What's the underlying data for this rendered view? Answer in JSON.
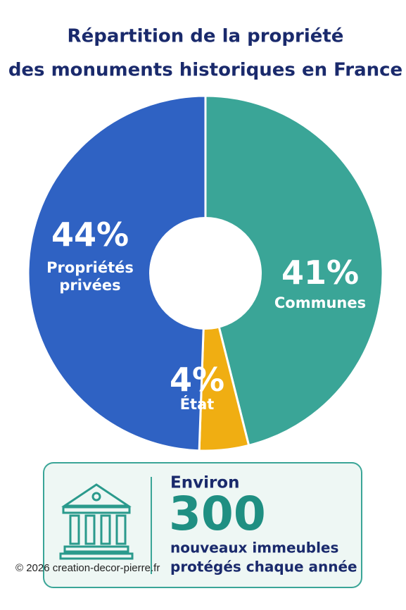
{
  "chart_data": {
    "type": "pie",
    "title": [
      "Répartition de la propriété",
      "des monuments historiques en France"
    ],
    "categories": [
      "Communes",
      "État",
      "Propriétés privées"
    ],
    "values": [
      41,
      4,
      44
    ],
    "value_labels": [
      "41%",
      "4%",
      "44%"
    ],
    "colors": [
      "#3aa597",
      "#f0ae12",
      "#2f62c3"
    ]
  },
  "info_box": {
    "lead": "Environ",
    "number": "300",
    "text": [
      "nouveaux immeubles",
      "protégés chaque année"
    ]
  },
  "footer": "© 2026 creation-decor-pierre.fr"
}
